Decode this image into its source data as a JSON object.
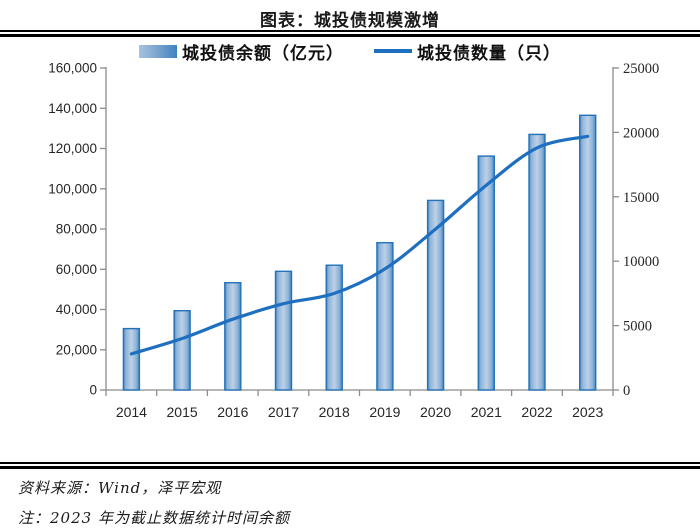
{
  "page": {
    "title": "图表：城投债规模激增",
    "source_line": "资料来源：Wind，泽平宏观",
    "note_line": "注：2023 年为截止数据统计时间余额"
  },
  "colors": {
    "line": "#1E6FC0",
    "bar_border": "#2572B8",
    "bar_grad_edge": "#4388C4",
    "bar_grad_mid1": "#8FB3D8",
    "bar_grad_light": "#BCD1E8",
    "axis": "#8C8C8C",
    "label": "#262626",
    "rule": "#000000"
  },
  "chart_data": {
    "type": "bar+line combo",
    "title": "图表：城投债规模激增",
    "categories": [
      "2014",
      "2015",
      "2016",
      "2017",
      "2018",
      "2019",
      "2020",
      "2021",
      "2022",
      "2023"
    ],
    "series": [
      {
        "name": "城投债余额（亿元）",
        "type": "bar",
        "axis": "left",
        "values": [
          30500,
          39400,
          53300,
          59000,
          62000,
          73200,
          94200,
          116200,
          127000,
          136500
        ]
      },
      {
        "name": "城投债数量（只）",
        "type": "line",
        "axis": "right",
        "values": [
          2800,
          4000,
          5500,
          6700,
          7500,
          9400,
          12500,
          15900,
          18800,
          19700
        ]
      }
    ],
    "left_axis": {
      "min": 0,
      "max": 160000,
      "step": 20000,
      "tick_labels": [
        "0",
        "20,000",
        "40,000",
        "60,000",
        "80,000",
        "100,000",
        "120,000",
        "140,000",
        "160,000"
      ]
    },
    "right_axis": {
      "min": 0,
      "max": 25000,
      "step": 5000,
      "tick_labels": [
        "0",
        "5000",
        "10000",
        "15000",
        "20000",
        "25000"
      ]
    },
    "grid": false,
    "legend_position": "top-center"
  }
}
